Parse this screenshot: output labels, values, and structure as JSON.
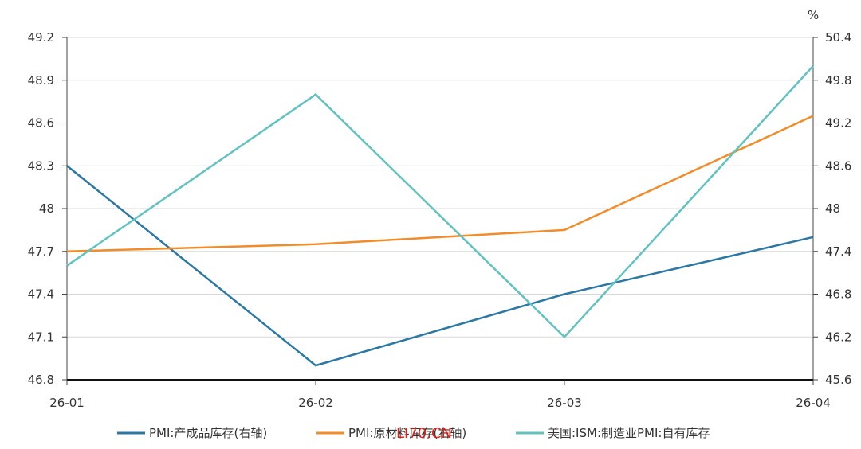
{
  "chart_data": {
    "type": "line",
    "x": [
      "26-01",
      "26-02",
      "26-03",
      "26-04"
    ],
    "y_left": {
      "ticks": [
        "46.8",
        "47.1",
        "47.4",
        "47.7",
        "48",
        "48.3",
        "48.6",
        "48.9",
        "49.2"
      ],
      "range": [
        46.8,
        49.2
      ]
    },
    "y_right": {
      "unit": "%",
      "ticks": [
        "45.6",
        "46.2",
        "46.8",
        "47.4",
        "48",
        "48.6",
        "49.2",
        "49.8",
        "50.4"
      ],
      "range": [
        45.6,
        50.4
      ]
    },
    "series": [
      {
        "name": "PMI:产成品库存(右轴)",
        "axis": "right",
        "color": "#2c78a5",
        "values": [
          48.6,
          45.8,
          46.8,
          47.6
        ]
      },
      {
        "name": "PMI:原材料库存(右轴)",
        "axis": "right",
        "color": "#f28c28",
        "values": [
          47.4,
          47.5,
          47.7,
          49.3
        ]
      },
      {
        "name": "美国:ISM:制造业PMI:自有库存",
        "axis": "left",
        "color": "#62c2c2",
        "values": [
          47.6,
          48.8,
          47.1,
          49.0
        ]
      }
    ],
    "grid": true,
    "legend_position": "bottom"
  },
  "watermark": "LI70.CN"
}
